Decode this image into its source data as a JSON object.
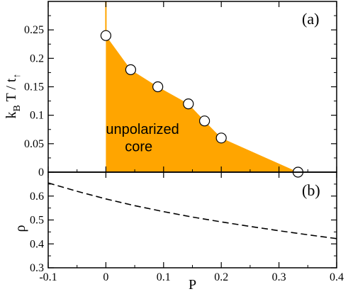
{
  "chart_data": [
    {
      "panel": "(a)",
      "type": "area",
      "ylabel_main": "k",
      "ylabel_sub_b": "B",
      "ylabel_mid": " T / t",
      "ylabel_sub_up": "↑",
      "xlim": [
        -0.1,
        0.4
      ],
      "ylim": [
        0,
        0.3
      ],
      "yticks": [
        0,
        0.05,
        0.1,
        0.15,
        0.2,
        0.25
      ],
      "ytick_labels": [
        "0",
        "0.05",
        "0.1",
        "0.15",
        "0.2",
        "0.25"
      ],
      "region_label_line1": "unpolarized",
      "region_label_line2": "core",
      "region_color": "#FFA500",
      "boundary": [
        {
          "x": 0,
          "y": 0
        },
        {
          "x": 0,
          "y": 0.24
        },
        {
          "x": 0.043,
          "y": 0.18
        },
        {
          "x": 0.09,
          "y": 0.15
        },
        {
          "x": 0.143,
          "y": 0.12
        },
        {
          "x": 0.171,
          "y": 0.09
        },
        {
          "x": 0.2,
          "y": 0.06
        },
        {
          "x": 0.333,
          "y": 0
        },
        {
          "x": 0,
          "y": 0
        }
      ],
      "vertical_line": {
        "x": 0,
        "y_from": 0.24,
        "y_to": 0.3
      },
      "points": [
        {
          "x": 0,
          "y": 0.24
        },
        {
          "x": 0.043,
          "y": 0.18
        },
        {
          "x": 0.09,
          "y": 0.15
        },
        {
          "x": 0.143,
          "y": 0.12
        },
        {
          "x": 0.171,
          "y": 0.09
        },
        {
          "x": 0.2,
          "y": 0.06
        },
        {
          "x": 0.333,
          "y": 0
        }
      ]
    },
    {
      "panel": "(b)",
      "type": "line",
      "xlabel": "P",
      "ylabel": "ρ",
      "xlim": [
        -0.1,
        0.4
      ],
      "ylim": [
        0.3,
        0.7
      ],
      "xticks": [
        -0.1,
        0,
        0.1,
        0.2,
        0.3,
        0.4
      ],
      "xtick_labels": [
        "-0.1",
        "0",
        "0.1",
        "0.2",
        "0.3",
        "0.4"
      ],
      "yticks": [
        0.3,
        0.4,
        0.5,
        0.6
      ],
      "ytick_labels": [
        "0.3",
        "0.4",
        "0.5",
        "0.6"
      ],
      "line_style": "dashed",
      "x": [
        -0.1,
        -0.05,
        0,
        0.05,
        0.1,
        0.15,
        0.2,
        0.25,
        0.3,
        0.35,
        0.4
      ],
      "y": [
        0.655,
        0.62,
        0.588,
        0.56,
        0.535,
        0.512,
        0.492,
        0.473,
        0.455,
        0.438,
        0.422
      ]
    }
  ]
}
